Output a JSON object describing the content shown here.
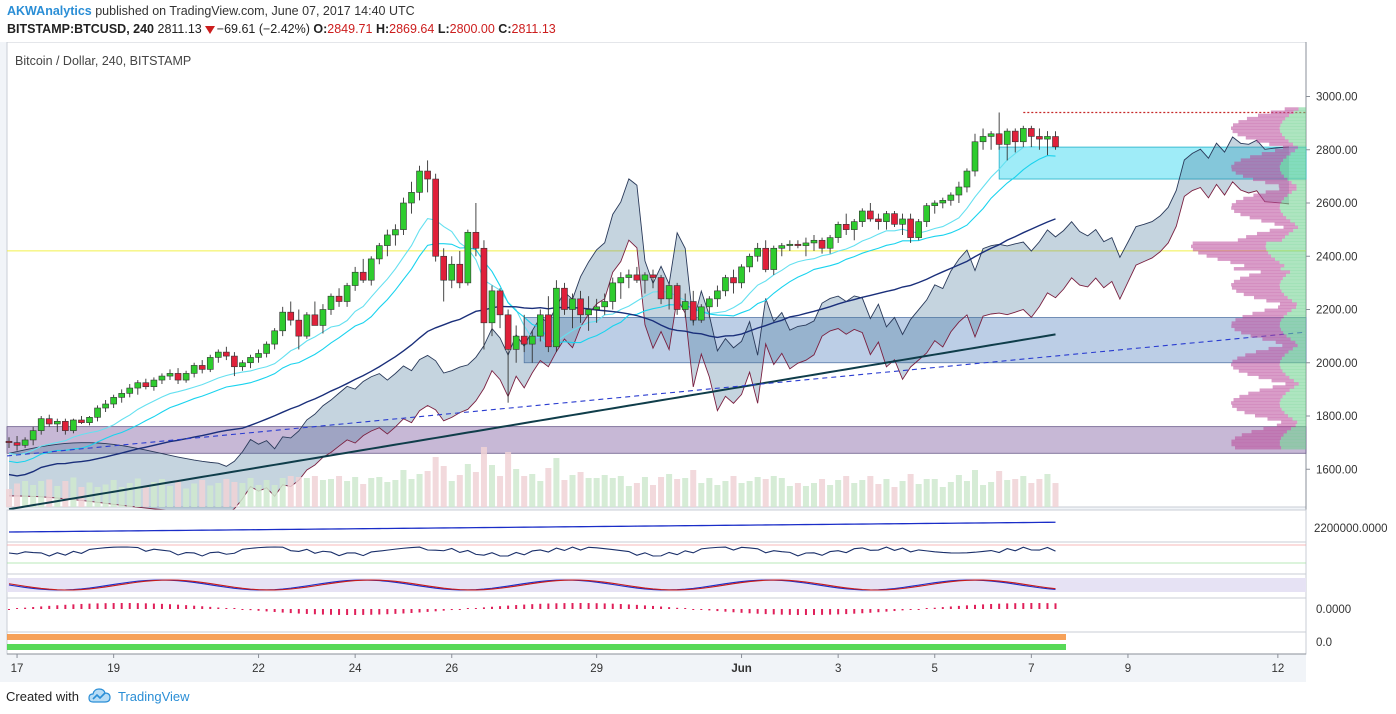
{
  "header": {
    "author": "AKWAnalytics",
    "published": "published on TradingView.com, June 07, 2017 14:40 UTC",
    "symbol": "BITSTAMP:BTCUSD, 240",
    "price": "2811.13",
    "change": "−69.61 (−2.42%)",
    "o_label": "O:",
    "o_value": "2849.71",
    "h_label": "H:",
    "h_value": "2869.64",
    "l_label": "L:",
    "l_value": "2800.00",
    "c_label": "C:",
    "c_value": "2811.13"
  },
  "footer": {
    "created_with": "Created with",
    "brand": "TradingView"
  },
  "colors": {
    "background": "#f1f4f8",
    "up_candle": "#2ecc2e",
    "down_candle": "#e0203a",
    "cloud": "#4a7a9a",
    "ma_navy": "#1a2f7a",
    "ma_cyan": "#19d3ee",
    "ma_teal": "#0f3d4a",
    "zone_cyan": "#7fe6f5",
    "zone_blue": "#9fb9dc",
    "zone_purple": "#b4a0c8",
    "accent_link": "#2a8ed6"
  },
  "chart_data": {
    "type": "candlestick",
    "title": "Bitcoin / Dollar, 240, BITSTAMP",
    "ylim": [
      1450,
      3200
    ],
    "y_ticks": [
      "3000.00",
      "2800.00",
      "2600.00",
      "2400.00",
      "2200.00",
      "2000.00",
      "1800.00",
      "1600.00"
    ],
    "x_ticks": [
      {
        "label": "17",
        "bar": 1
      },
      {
        "label": "19",
        "bar": 13
      },
      {
        "label": "22",
        "bar": 31
      },
      {
        "label": "24",
        "bar": 43
      },
      {
        "label": "26",
        "bar": 55
      },
      {
        "label": "29",
        "bar": 73
      },
      {
        "label": "Jun",
        "bar": 91
      },
      {
        "label": "3",
        "bar": 103
      },
      {
        "label": "5",
        "bar": 115
      },
      {
        "label": "7",
        "bar": 127
      },
      {
        "label": "9",
        "bar": 139
      },
      {
        "label": "12",
        "bar": 157
      }
    ],
    "ohlc": [
      [
        1705,
        1720,
        1680,
        1700
      ],
      [
        1700,
        1725,
        1670,
        1690
      ],
      [
        1690,
        1720,
        1680,
        1710
      ],
      [
        1710,
        1760,
        1690,
        1745
      ],
      [
        1745,
        1800,
        1730,
        1790
      ],
      [
        1790,
        1805,
        1760,
        1770
      ],
      [
        1770,
        1790,
        1740,
        1780
      ],
      [
        1780,
        1790,
        1730,
        1745
      ],
      [
        1745,
        1790,
        1735,
        1785
      ],
      [
        1785,
        1800,
        1770,
        1775
      ],
      [
        1775,
        1800,
        1765,
        1795
      ],
      [
        1795,
        1840,
        1780,
        1830
      ],
      [
        1830,
        1860,
        1815,
        1845
      ],
      [
        1845,
        1880,
        1830,
        1870
      ],
      [
        1870,
        1900,
        1850,
        1885
      ],
      [
        1885,
        1920,
        1870,
        1905
      ],
      [
        1905,
        1935,
        1880,
        1925
      ],
      [
        1925,
        1940,
        1900,
        1910
      ],
      [
        1910,
        1945,
        1895,
        1935
      ],
      [
        1935,
        1960,
        1920,
        1950
      ],
      [
        1950,
        1975,
        1935,
        1960
      ],
      [
        1960,
        1980,
        1920,
        1935
      ],
      [
        1935,
        1970,
        1925,
        1960
      ],
      [
        1960,
        2000,
        1945,
        1990
      ],
      [
        1990,
        2010,
        1960,
        1975
      ],
      [
        1975,
        2030,
        1965,
        2020
      ],
      [
        2020,
        2050,
        2000,
        2040
      ],
      [
        2040,
        2060,
        2010,
        2025
      ],
      [
        2025,
        2040,
        1950,
        1985
      ],
      [
        1985,
        2010,
        1970,
        2000
      ],
      [
        2000,
        2030,
        1980,
        2020
      ],
      [
        2020,
        2050,
        2000,
        2035
      ],
      [
        2035,
        2080,
        2020,
        2070
      ],
      [
        2070,
        2130,
        2050,
        2120
      ],
      [
        2120,
        2210,
        2100,
        2190
      ],
      [
        2190,
        2230,
        2140,
        2160
      ],
      [
        2160,
        2200,
        2050,
        2100
      ],
      [
        2100,
        2190,
        2090,
        2180
      ],
      [
        2180,
        2230,
        2150,
        2140
      ],
      [
        2140,
        2220,
        2110,
        2200
      ],
      [
        2200,
        2260,
        2180,
        2250
      ],
      [
        2250,
        2280,
        2210,
        2230
      ],
      [
        2230,
        2300,
        2210,
        2290
      ],
      [
        2290,
        2360,
        2270,
        2340
      ],
      [
        2340,
        2390,
        2300,
        2310
      ],
      [
        2310,
        2400,
        2290,
        2390
      ],
      [
        2390,
        2450,
        2370,
        2440
      ],
      [
        2440,
        2500,
        2400,
        2480
      ],
      [
        2480,
        2520,
        2440,
        2500
      ],
      [
        2500,
        2620,
        2480,
        2600
      ],
      [
        2600,
        2680,
        2560,
        2640
      ],
      [
        2640,
        2740,
        2610,
        2720
      ],
      [
        2720,
        2760,
        2640,
        2690
      ],
      [
        2690,
        2710,
        2380,
        2400
      ],
      [
        2400,
        2430,
        2230,
        2310
      ],
      [
        2310,
        2400,
        2280,
        2370
      ],
      [
        2370,
        2420,
        2280,
        2300
      ],
      [
        2300,
        2500,
        2290,
        2490
      ],
      [
        2490,
        2600,
        2400,
        2430
      ],
      [
        2430,
        2460,
        2050,
        2150
      ],
      [
        2150,
        2290,
        2100,
        2270
      ],
      [
        2270,
        2280,
        2130,
        2180
      ],
      [
        2180,
        2200,
        1850,
        2050
      ],
      [
        2050,
        2140,
        2000,
        2100
      ],
      [
        2100,
        2180,
        2040,
        2070
      ],
      [
        2070,
        2120,
        2000,
        2100
      ],
      [
        2100,
        2200,
        2080,
        2180
      ],
      [
        2180,
        2250,
        2040,
        2060
      ],
      [
        2060,
        2310,
        2040,
        2280
      ],
      [
        2280,
        2300,
        2180,
        2200
      ],
      [
        2200,
        2260,
        2130,
        2240
      ],
      [
        2240,
        2270,
        2150,
        2180
      ],
      [
        2180,
        2250,
        2120,
        2200
      ],
      [
        2200,
        2240,
        2150,
        2210
      ],
      [
        2210,
        2260,
        2180,
        2230
      ],
      [
        2230,
        2320,
        2200,
        2300
      ],
      [
        2300,
        2340,
        2240,
        2320
      ],
      [
        2320,
        2350,
        2280,
        2330
      ],
      [
        2330,
        2360,
        2300,
        2310
      ],
      [
        2310,
        2340,
        2260,
        2330
      ],
      [
        2330,
        2350,
        2280,
        2320
      ],
      [
        2320,
        2330,
        2220,
        2240
      ],
      [
        2240,
        2300,
        2200,
        2290
      ],
      [
        2290,
        2300,
        2180,
        2200
      ],
      [
        2200,
        2260,
        2170,
        2230
      ],
      [
        2230,
        2270,
        2140,
        2160
      ],
      [
        2160,
        2220,
        2150,
        2210
      ],
      [
        2210,
        2250,
        2170,
        2240
      ],
      [
        2240,
        2290,
        2210,
        2270
      ],
      [
        2270,
        2330,
        2250,
        2320
      ],
      [
        2320,
        2350,
        2260,
        2300
      ],
      [
        2300,
        2370,
        2280,
        2360
      ],
      [
        2360,
        2410,
        2340,
        2400
      ],
      [
        2400,
        2450,
        2380,
        2430
      ],
      [
        2430,
        2460,
        2340,
        2350
      ],
      [
        2350,
        2440,
        2330,
        2430
      ],
      [
        2430,
        2450,
        2400,
        2440
      ],
      [
        2440,
        2460,
        2420,
        2445
      ],
      [
        2445,
        2460,
        2430,
        2440
      ],
      [
        2440,
        2470,
        2400,
        2450
      ],
      [
        2450,
        2480,
        2420,
        2460
      ],
      [
        2460,
        2470,
        2410,
        2430
      ],
      [
        2430,
        2480,
        2410,
        2470
      ],
      [
        2470,
        2530,
        2450,
        2520
      ],
      [
        2520,
        2560,
        2480,
        2500
      ],
      [
        2500,
        2540,
        2460,
        2530
      ],
      [
        2530,
        2580,
        2510,
        2570
      ],
      [
        2570,
        2600,
        2530,
        2540
      ],
      [
        2540,
        2560,
        2500,
        2530
      ],
      [
        2530,
        2570,
        2500,
        2560
      ],
      [
        2560,
        2570,
        2510,
        2520
      ],
      [
        2520,
        2560,
        2480,
        2540
      ],
      [
        2540,
        2560,
        2450,
        2470
      ],
      [
        2470,
        2540,
        2460,
        2530
      ],
      [
        2530,
        2600,
        2510,
        2590
      ],
      [
        2590,
        2610,
        2560,
        2600
      ],
      [
        2600,
        2620,
        2580,
        2610
      ],
      [
        2610,
        2640,
        2590,
        2630
      ],
      [
        2630,
        2680,
        2600,
        2660
      ],
      [
        2660,
        2730,
        2640,
        2720
      ],
      [
        2720,
        2860,
        2700,
        2830
      ],
      [
        2830,
        2880,
        2800,
        2850
      ],
      [
        2850,
        2870,
        2800,
        2860
      ],
      [
        2860,
        2940,
        2800,
        2820
      ],
      [
        2820,
        2880,
        2760,
        2870
      ],
      [
        2870,
        2880,
        2790,
        2830
      ],
      [
        2830,
        2890,
        2810,
        2880
      ],
      [
        2880,
        2890,
        2810,
        2850
      ],
      [
        2850,
        2880,
        2800,
        2840
      ],
      [
        2840,
        2870,
        2780,
        2850
      ],
      [
        2849.71,
        2869.64,
        2800,
        2811.13
      ]
    ],
    "annotations": [
      "2940 high marker (dotted red)",
      "supply zone 2690-2810",
      "zone 2000-2170",
      "zone 1660-1760",
      "horizontal line 2420"
    ],
    "indicator_ticks": [
      "2200000.0000",
      "0.0000",
      "0.0"
    ]
  }
}
